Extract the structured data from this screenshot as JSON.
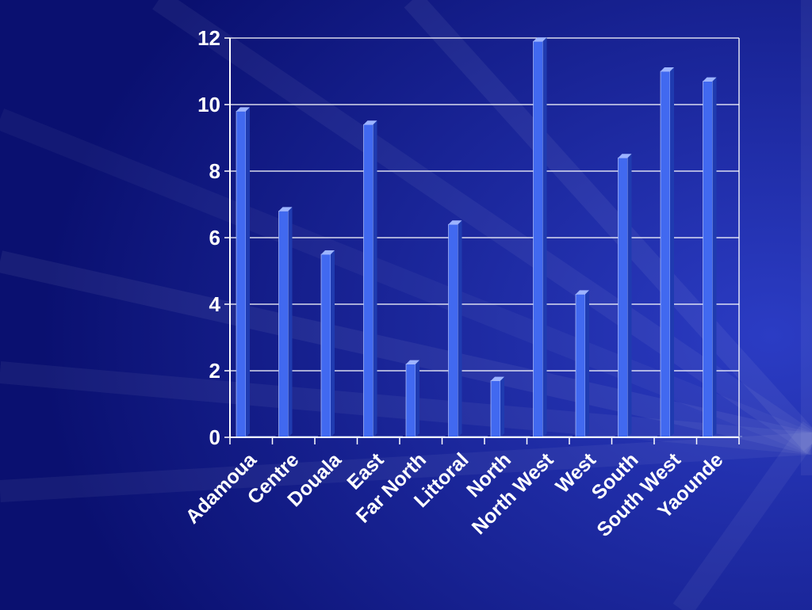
{
  "slide": {
    "background_color": "#0f1785"
  },
  "chart_data": {
    "type": "bar",
    "categories": [
      "Adamoua",
      "Centre",
      "Douala",
      "East",
      "Far North",
      "Littoral",
      "North",
      "North West",
      "West",
      "South",
      "South West",
      "Yaounde"
    ],
    "values": [
      9.8,
      6.8,
      5.5,
      9.4,
      2.2,
      6.4,
      1.7,
      11.9,
      4.3,
      8.4,
      11.0,
      10.7
    ],
    "title": "",
    "xlabel": "",
    "ylabel": "",
    "ylim": [
      0,
      12
    ],
    "yticks": [
      "0",
      "2",
      "4",
      "6",
      "8",
      "10",
      "12"
    ],
    "grid": true,
    "bar_style": "3d",
    "colors": {
      "bar_front": "#4169f0",
      "bar_side": "#1f3bb0",
      "bar_top": "#9db4ff",
      "gridline": "#ffffff",
      "axis": "#ffffff",
      "text": "#ffffff"
    }
  }
}
